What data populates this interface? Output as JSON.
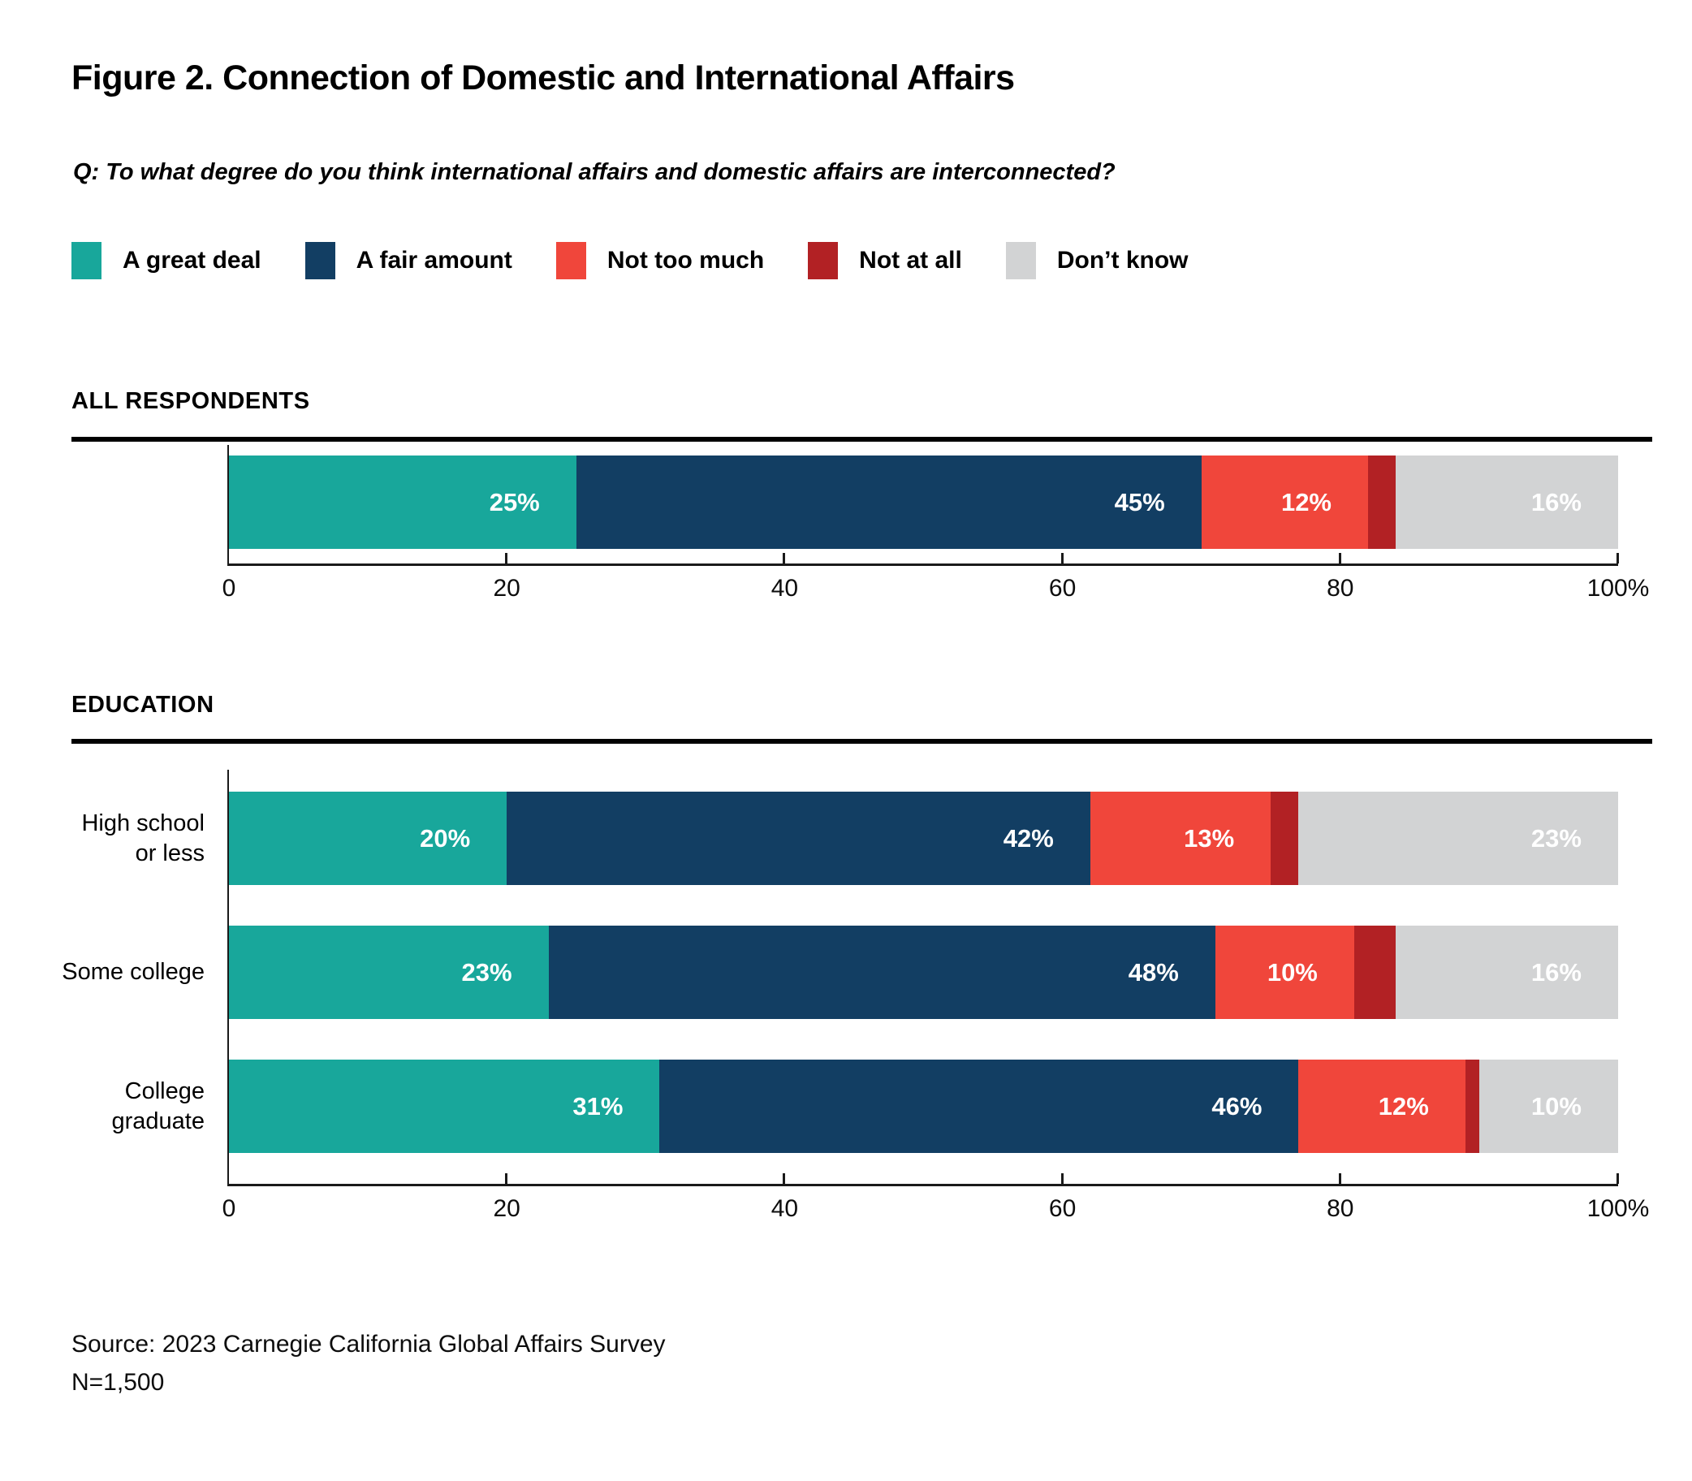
{
  "page": {
    "title": "Figure 2. Connection of Domestic and International Affairs",
    "question": "Q: To what degree do you think international affairs and domestic affairs are interconnected?",
    "source_line1": "Source: 2023 Carnegie California Global Affairs Survey",
    "source_line2": "N=1,500"
  },
  "legend": {
    "items": [
      {
        "label": "A great deal",
        "color": "#18A79B"
      },
      {
        "label": "A fair amount",
        "color": "#123E63"
      },
      {
        "label": "Not too much",
        "color": "#F0463B"
      },
      {
        "label": "Not at all",
        "color": "#B22124"
      },
      {
        "label": "Don’t know",
        "color": "#D2D3D4"
      }
    ]
  },
  "chart_data": [
    {
      "type": "bar",
      "stacked": true,
      "orientation": "horizontal",
      "section_label": "ALL RESPONDENTS",
      "unit": "%",
      "xlim": [
        0,
        100
      ],
      "tick_values": [
        0,
        20,
        40,
        60,
        80,
        100
      ],
      "tick_labels": [
        "0",
        "20",
        "40",
        "60",
        "80",
        "100%"
      ],
      "categories": [
        [
          ""
        ]
      ],
      "series": [
        {
          "name": "A great deal",
          "values": [
            25
          ]
        },
        {
          "name": "A fair amount",
          "values": [
            45
          ]
        },
        {
          "name": "Not too much",
          "values": [
            12
          ]
        },
        {
          "name": "Not at all",
          "values": [
            2
          ]
        },
        {
          "name": "Don’t know",
          "values": [
            16
          ]
        }
      ]
    },
    {
      "type": "bar",
      "stacked": true,
      "orientation": "horizontal",
      "section_label": "EDUCATION",
      "unit": "%",
      "xlim": [
        0,
        100
      ],
      "tick_values": [
        0,
        20,
        40,
        60,
        80,
        100
      ],
      "tick_labels": [
        "0",
        "20",
        "40",
        "60",
        "80",
        "100%"
      ],
      "categories": [
        [
          "High school",
          "or less"
        ],
        [
          "Some college"
        ],
        [
          "College",
          "graduate"
        ]
      ],
      "series": [
        {
          "name": "A great deal",
          "values": [
            20,
            23,
            31
          ]
        },
        {
          "name": "A fair amount",
          "values": [
            42,
            48,
            46
          ]
        },
        {
          "name": "Not too much",
          "values": [
            13,
            10,
            12
          ]
        },
        {
          "name": "Not at all",
          "values": [
            2,
            3,
            1
          ]
        },
        {
          "name": "Don’t know",
          "values": [
            23,
            16,
            10
          ]
        }
      ]
    }
  ]
}
